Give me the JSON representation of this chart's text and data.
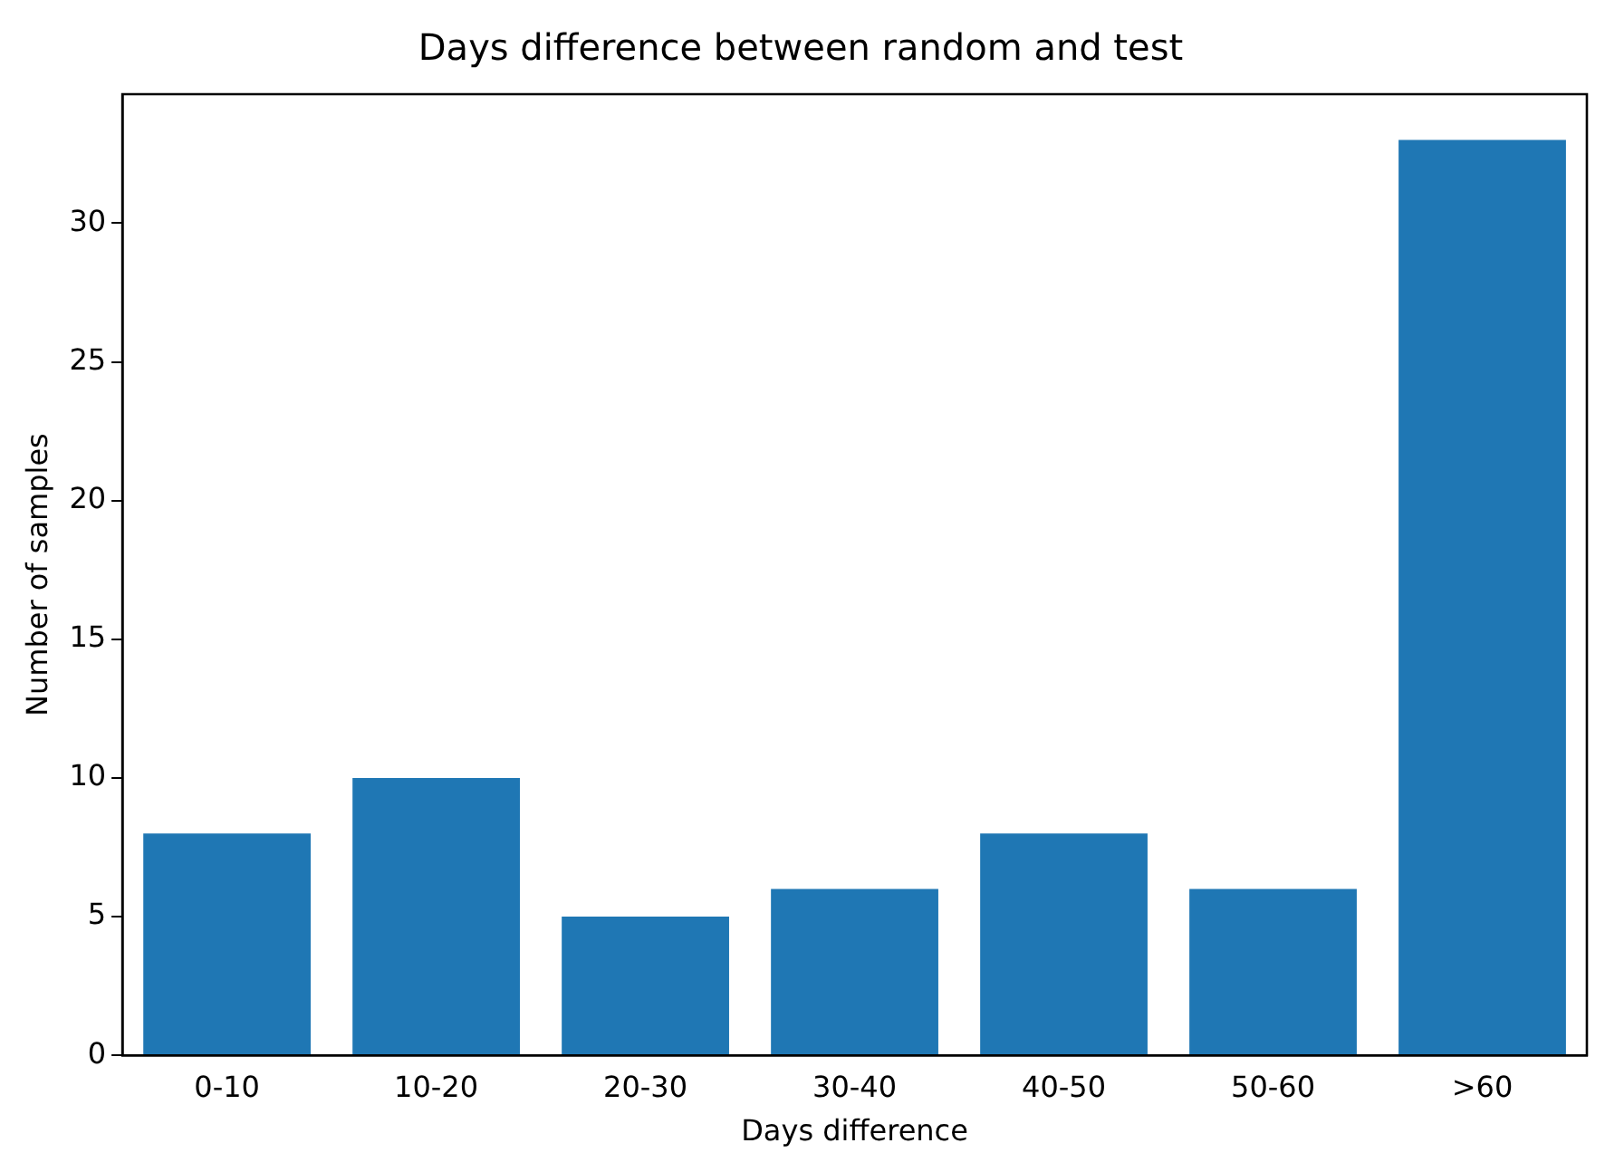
{
  "chart_data": {
    "type": "bar",
    "title": "Days difference between random and test",
    "xlabel": "Days difference",
    "ylabel": "Number of samples",
    "categories": [
      "0-10",
      "10-20",
      "20-30",
      "30-40",
      "40-50",
      "50-60",
      ">60"
    ],
    "values": [
      8,
      10,
      5,
      6,
      8,
      6,
      33
    ],
    "color": "#1f77b4",
    "ylim": [
      0,
      34.65
    ],
    "yticks": [
      0,
      5,
      10,
      15,
      20,
      25,
      30
    ],
    "grid": false,
    "legend": false
  }
}
